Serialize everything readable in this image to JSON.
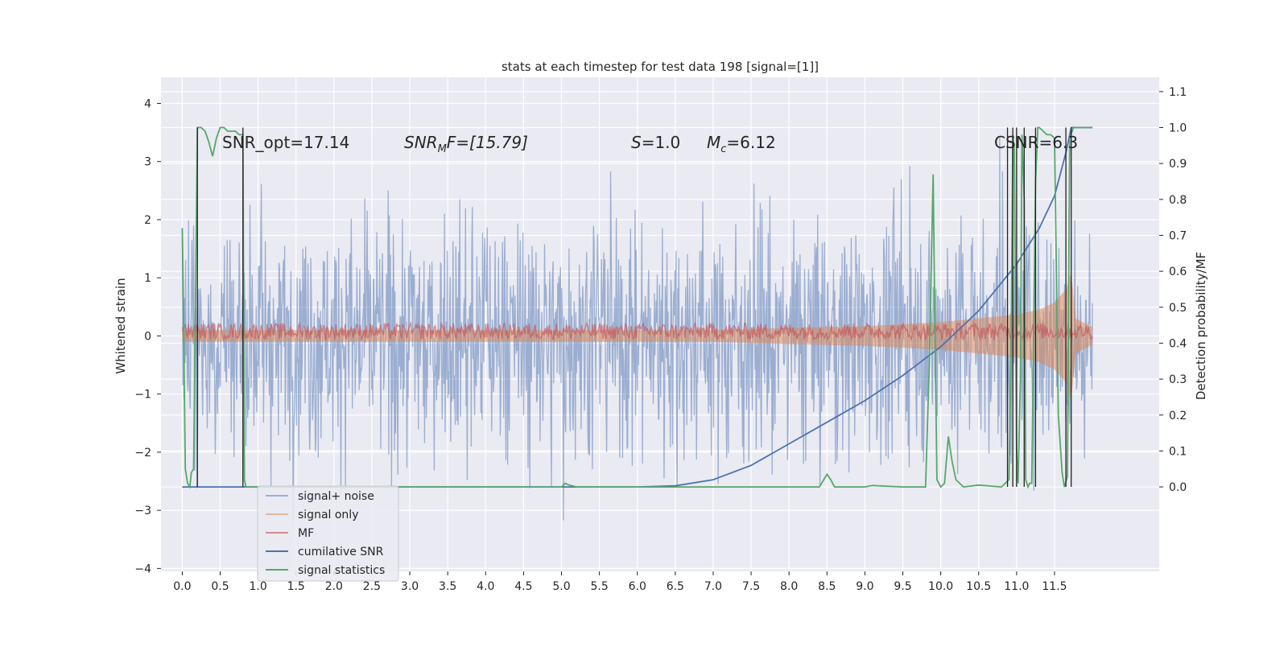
{
  "chart_data": {
    "type": "line",
    "title": "stats at each timestep for test data 198 [signal=[1]]",
    "ylabel_left": "Whitened strain",
    "ylabel_right": "Detection probability/MF",
    "x_ticks": [
      "0.0",
      "0.5",
      "1.0",
      "1.5",
      "2.0",
      "2.5",
      "3.0",
      "3.5",
      "4.0",
      "4.5",
      "5.0",
      "5.5",
      "6.0",
      "6.5",
      "7.0",
      "7.5",
      "8.0",
      "8.5",
      "9.0",
      "9.5",
      "10.0",
      "10.5",
      "11.0",
      "11.5"
    ],
    "y_left_ticks": [
      "4",
      "3",
      "2",
      "1",
      "0",
      "−1",
      "−2",
      "−3",
      "−4"
    ],
    "y_right_ticks": [
      "1.1",
      "1.0",
      "0.9",
      "0.8",
      "0.7",
      "0.6",
      "0.5",
      "0.4",
      "0.3",
      "0.2",
      "0.1",
      "0.0"
    ],
    "xlim": [
      -0.28,
      12.88
    ],
    "ylim_left": [
      -4.05,
      4.45
    ],
    "ylim_right": [
      -0.235,
      1.14
    ],
    "grid": true,
    "legend_position": "lower-left",
    "annotations": {
      "snr_opt": "SNR_opt=17.14",
      "snr_mf_name": "SNR",
      "snr_mf_sub": "M",
      "snr_mf_rest": "F=[15.79]",
      "s_name": "S",
      "s_rest": "=1.0",
      "mc_name": "M",
      "mc_sub": "c",
      "mc_rest": "=6.12",
      "csnr": "CSNR=6.3"
    },
    "series": [
      {
        "name": "signal+ noise",
        "color": "#4c72b0",
        "opacity": 0.5,
        "axis": "left",
        "envelope": {
          "x_range": [
            0,
            12
          ],
          "sigma": 1.0
        }
      },
      {
        "name": "signal only",
        "color": "#dd8452",
        "opacity": 0.5,
        "axis": "left",
        "envelope_x": [
          0,
          7,
          8,
          9,
          9.5,
          10,
          10.5,
          11,
          11.3,
          11.5,
          11.65,
          11.72,
          11.78,
          12
        ],
        "envelope_y": [
          0.1,
          0.1,
          0.14,
          0.17,
          0.2,
          0.24,
          0.3,
          0.37,
          0.45,
          0.58,
          0.8,
          1.1,
          0.3,
          0.15
        ]
      },
      {
        "name": "MF",
        "color": "#c44e52",
        "opacity": 0.6,
        "axis": "left",
        "band": [
          -0.02,
          0.18
        ]
      },
      {
        "name": "cumilative SNR",
        "color": "#4c72b0",
        "axis": "right",
        "x": [
          0,
          6,
          6.5,
          7,
          7.5,
          8,
          8.5,
          9,
          9.5,
          10,
          10.5,
          11,
          11.3,
          11.5,
          11.65,
          11.72,
          11.73,
          12
        ],
        "y": [
          0,
          0,
          0.003,
          0.02,
          0.06,
          0.12,
          0.18,
          0.24,
          0.31,
          0.39,
          0.49,
          0.62,
          0.72,
          0.81,
          0.93,
          1.0,
          1.0,
          1.0
        ]
      },
      {
        "name": "signal statistics",
        "color": "#55a868",
        "axis": "right",
        "x": [
          0,
          0.01,
          0.04,
          0.07,
          0.1,
          0.12,
          0.15,
          0.18,
          0.2,
          0.22,
          0.25,
          0.3,
          0.35,
          0.4,
          0.45,
          0.5,
          0.55,
          0.6,
          0.65,
          0.7,
          0.75,
          0.8,
          0.81,
          0.82,
          0.84,
          0.9,
          1.0,
          5.0,
          5.05,
          5.1,
          5.2,
          5.5,
          8.0,
          8.4,
          8.5,
          8.55,
          8.6,
          9.0,
          9.1,
          9.5,
          9.8,
          9.85,
          9.9,
          9.92,
          9.95,
          10.0,
          10.05,
          10.1,
          10.15,
          10.2,
          10.3,
          10.5,
          10.8,
          10.9,
          10.93,
          10.95,
          10.97,
          11.0,
          11.02,
          11.05,
          11.07,
          11.1,
          11.12,
          11.15,
          11.17,
          11.2,
          11.25,
          11.28,
          11.3,
          11.35,
          11.4,
          11.45,
          11.5,
          11.55,
          11.6,
          11.63,
          11.67,
          11.7,
          11.75,
          11.8,
          11.85,
          11.9,
          11.95,
          12.0
        ],
        "y": [
          0.72,
          0.6,
          0.05,
          0.01,
          0.0,
          0.04,
          0.05,
          0.6,
          1.0,
          1.0,
          1.0,
          0.99,
          0.96,
          0.92,
          0.97,
          1.0,
          1.0,
          0.99,
          0.99,
          0.99,
          0.98,
          0.98,
          0.45,
          0.02,
          0.0,
          0.0,
          0.0,
          0.0,
          0.01,
          0.005,
          0.0,
          0.0,
          0.0,
          0.0,
          0.035,
          0.02,
          0.0,
          0.0,
          0.004,
          0.0,
          0.0,
          0.35,
          0.87,
          0.5,
          0.02,
          0.0,
          0.01,
          0.14,
          0.07,
          0.02,
          0.0,
          0.005,
          0.0,
          0.02,
          0.45,
          0.98,
          0.94,
          0.1,
          0.01,
          0.3,
          0.98,
          0.8,
          0.02,
          0.0,
          0.01,
          0.01,
          0.85,
          1.0,
          1.0,
          0.99,
          0.98,
          0.98,
          0.97,
          0.2,
          0.04,
          0.0,
          0.03,
          0.97,
          1.0,
          1.0,
          1.0,
          1.0,
          1.0,
          1.0
        ]
      }
    ],
    "vertical_lines_x": [
      0.2,
      0.8,
      10.88,
      10.95,
      11.0,
      11.1,
      11.25,
      11.65,
      11.72
    ],
    "vertical_lines_color": "#222222"
  }
}
